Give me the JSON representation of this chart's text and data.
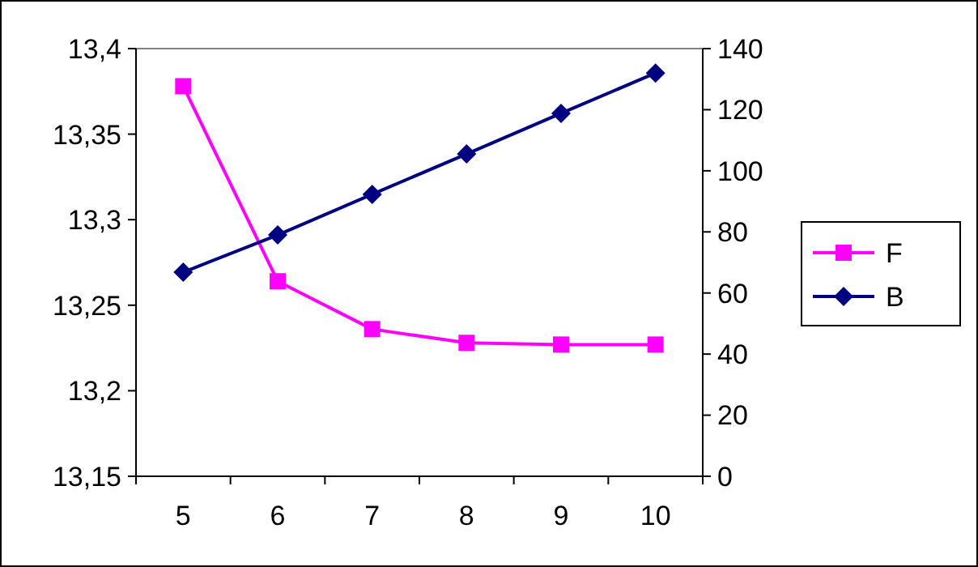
{
  "chart_data": {
    "type": "line",
    "categories": [
      "5",
      "6",
      "7",
      "8",
      "9",
      "10"
    ],
    "ylim": [
      13.15,
      13.4
    ],
    "yticks": [
      {
        "value": 13.15,
        "label": "13,15"
      },
      {
        "value": 13.2,
        "label": "13,2"
      },
      {
        "value": 13.25,
        "label": "13,25"
      },
      {
        "value": 13.3,
        "label": "13,3"
      },
      {
        "value": 13.35,
        "label": "13,35"
      },
      {
        "value": 13.4,
        "label": "13,4"
      }
    ],
    "y2lim": [
      0,
      140
    ],
    "y2ticks": [
      0,
      20,
      40,
      60,
      80,
      100,
      120,
      140
    ],
    "legend": "right",
    "grid": false,
    "series": [
      {
        "name": "F",
        "color": "#ff00ff",
        "marker": "square",
        "values": [
          13.378,
          13.264,
          13.236,
          13.228,
          13.227,
          13.227
        ]
      },
      {
        "name": "B",
        "color": "#000080",
        "marker": "diamond",
        "axis": "y2",
        "values": [
          66.8,
          79,
          92.3,
          105.5,
          118.8,
          132
        ]
      }
    ]
  }
}
